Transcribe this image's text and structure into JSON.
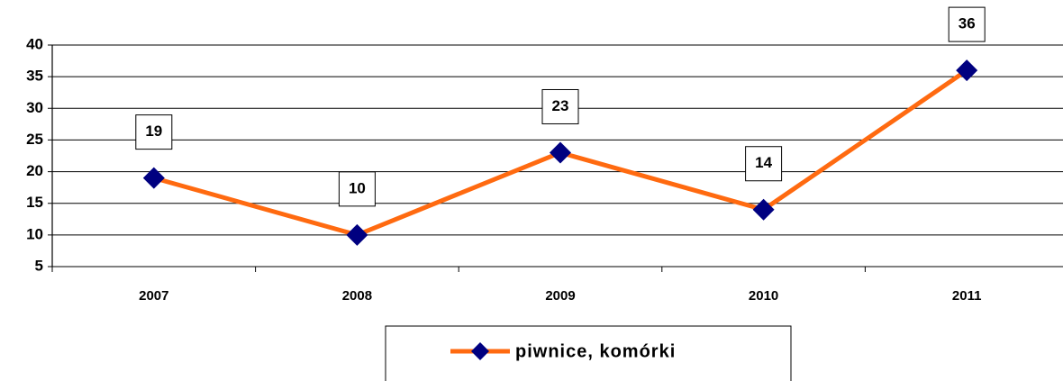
{
  "chart_data": {
    "type": "line",
    "categories": [
      "2007",
      "2008",
      "2009",
      "2010",
      "2011"
    ],
    "series": [
      {
        "name": "piwnice, komórki",
        "color": "#ff6a10",
        "marker_color": "#000080",
        "values": [
          19,
          10,
          23,
          14,
          36
        ]
      }
    ],
    "ylim": [
      5,
      40
    ],
    "yticks": [
      5,
      10,
      15,
      20,
      25,
      30,
      35,
      40
    ],
    "grid": true,
    "legend": "bottom"
  }
}
